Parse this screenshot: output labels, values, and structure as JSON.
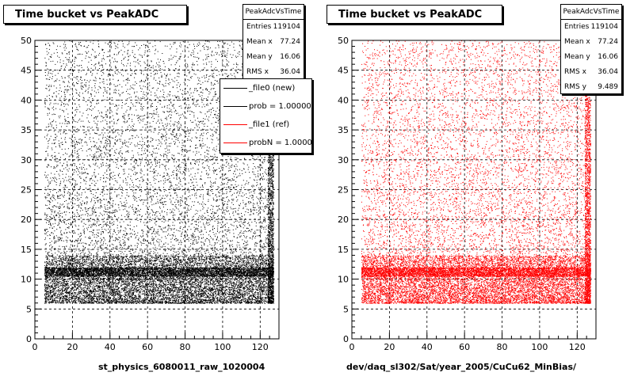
{
  "chart_data": [
    {
      "type": "scatter",
      "title": "Time bucket vs PeakADC",
      "xlabel": "st_physics_6080011_raw_1020004",
      "ylabel": "",
      "xlim": [
        0,
        130
      ],
      "ylim": [
        0,
        50
      ],
      "x_ticks": [
        0,
        20,
        40,
        60,
        80,
        100,
        120
      ],
      "y_ticks": [
        0,
        5,
        10,
        15,
        20,
        25,
        30,
        35,
        40,
        45,
        50
      ],
      "grid": true,
      "marker_color": "#000000",
      "point_x_range": [
        5,
        127
      ],
      "point_y_range": [
        6,
        50
      ],
      "dense_band_y": [
        10.5,
        12
      ],
      "stats": {
        "name": "PeakAdcVsTime",
        "rows": [
          {
            "label": "Entries",
            "value": "119104"
          },
          {
            "label": "Mean x",
            "value": "77.24"
          },
          {
            "label": "Mean y",
            "value": "16.06"
          },
          {
            "label": "RMS x",
            "value": "36.04"
          }
        ]
      },
      "legend": {
        "placement": "top-right",
        "entries": [
          {
            "text": "_file0 (new)",
            "color": "#000000"
          },
          {
            "text": "prob = 1.000000",
            "color": "#000000"
          },
          {
            "text": "_file1 (ref)",
            "color": "#ff0000"
          },
          {
            "text": "probN = 1.000000",
            "color": "#ff0000"
          }
        ]
      }
    },
    {
      "type": "scatter",
      "title": "Time bucket vs PeakADC",
      "xlabel": "dev/daq_sl302/Sat/year_2005/CuCu62_MinBias/",
      "ylabel": "",
      "xlim": [
        0,
        130
      ],
      "ylim": [
        0,
        50
      ],
      "x_ticks": [
        0,
        20,
        40,
        60,
        80,
        100,
        120
      ],
      "y_ticks": [
        0,
        5,
        10,
        15,
        20,
        25,
        30,
        35,
        40,
        45,
        50
      ],
      "grid": true,
      "marker_color": "#ff0000",
      "point_x_range": [
        5,
        127
      ],
      "point_y_range": [
        6,
        50
      ],
      "dense_band_y": [
        10.5,
        12
      ],
      "stats": {
        "name": "PeakAdcVsTime",
        "rows": [
          {
            "label": "Entries",
            "value": "119104"
          },
          {
            "label": "Mean x",
            "value": "77.24"
          },
          {
            "label": "Mean y",
            "value": "16.06"
          },
          {
            "label": "RMS x",
            "value": "36.04"
          },
          {
            "label": "RMS y",
            "value": "9.489"
          }
        ]
      }
    }
  ]
}
